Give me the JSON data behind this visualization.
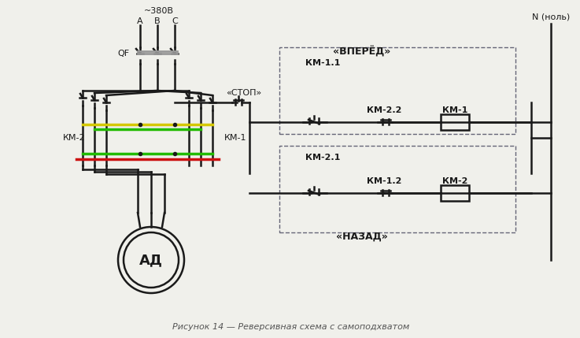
{
  "title": "Рисунок 14 — Реверсивная схема с самоподхватом",
  "bg_color": "#f0f0eb",
  "line_color": "#1a1a1a",
  "fig_width": 7.37,
  "fig_height": 4.29,
  "dpi": 100,
  "texts": {
    "voltage": "~380В",
    "phase_a": "А",
    "phase_b": "В",
    "phase_c": "С",
    "qf": "QF",
    "km1_label": "КМ-1",
    "km2_label": "КМ-2",
    "ad": "АД",
    "stop": "«СТОП»",
    "forward": "«ВПЕРЁД»",
    "backward": "«НАЗАД»",
    "km11": "КМ-1.1",
    "km22": "КМ-2.2",
    "km1_coil": "КМ-1",
    "km21": "КМ-2.1",
    "km12": "КМ-1.2",
    "km2_coil": "КМ-2",
    "neutral": "N (ноль)"
  },
  "colors": {
    "yellow": "#d4c800",
    "green": "#22bb00",
    "red": "#cc1111",
    "gray": "#999999",
    "dash_box": "#666677",
    "caption": "#555555"
  }
}
